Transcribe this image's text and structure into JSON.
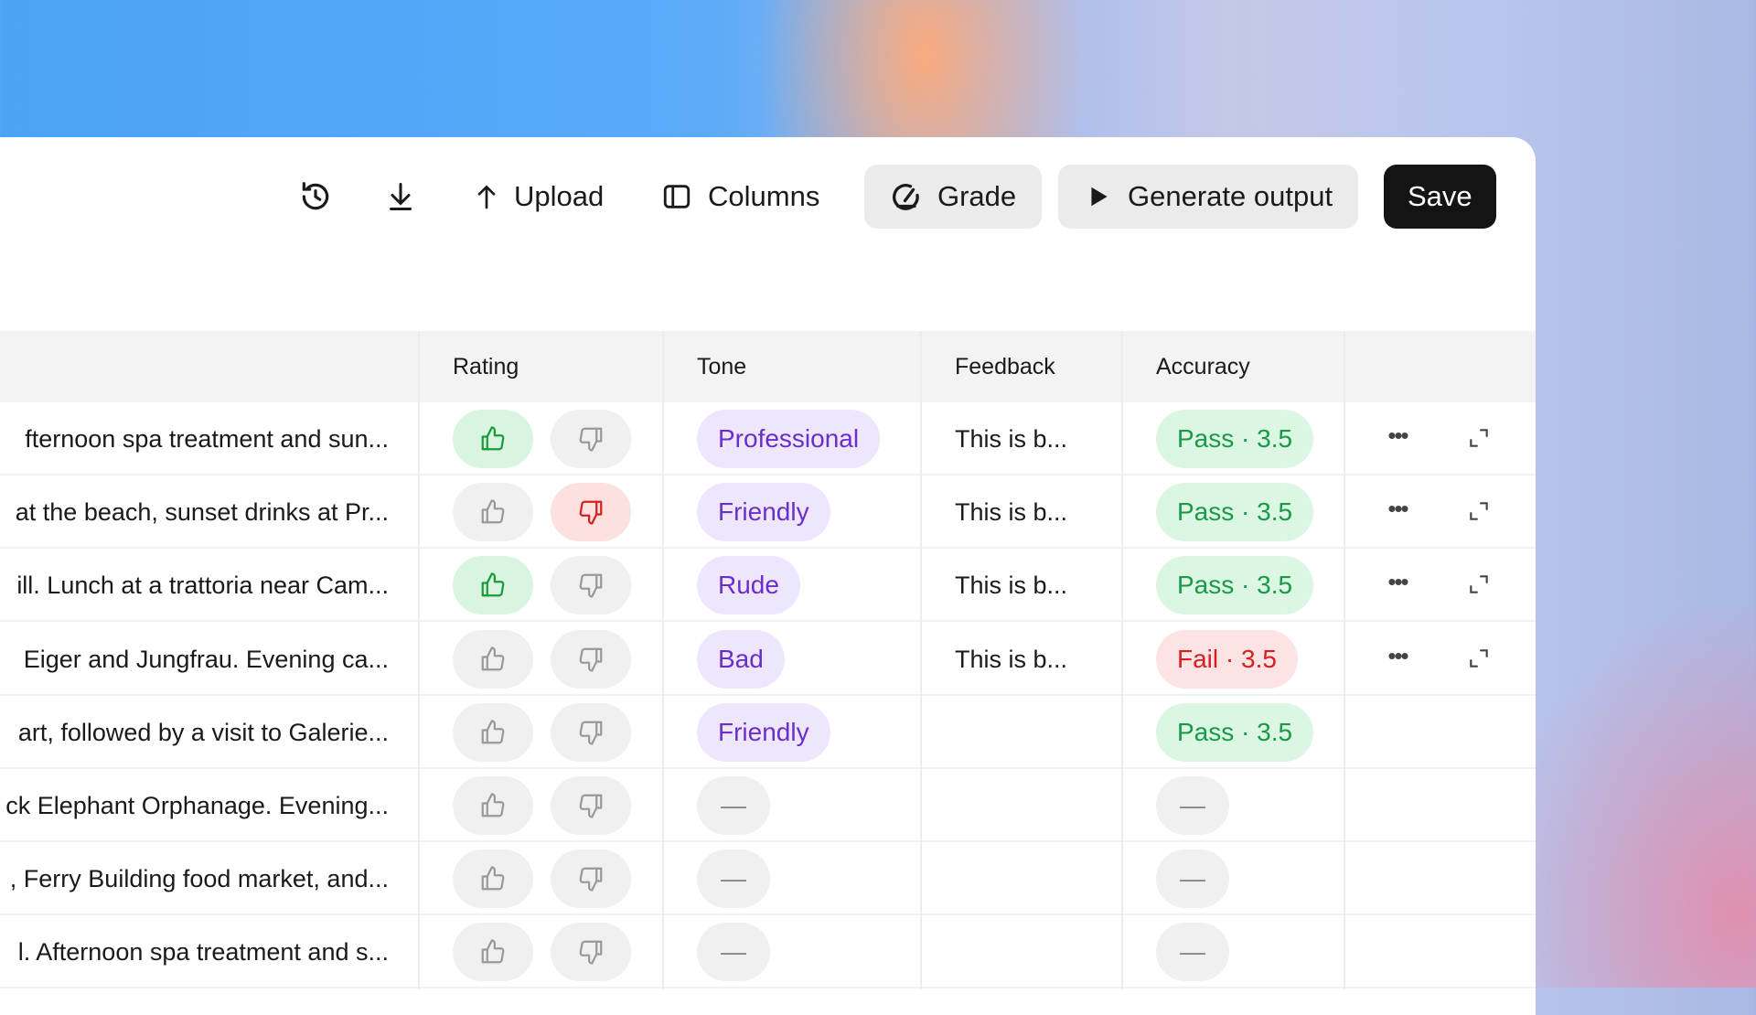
{
  "toolbar": {
    "history_icon": "history-icon",
    "download_icon": "download-icon",
    "upload": "Upload",
    "columns": "Columns",
    "grade": "Grade",
    "generate": "Generate output",
    "save": "Save"
  },
  "columns": {
    "rating": "Rating",
    "tone": "Tone",
    "feedback": "Feedback",
    "accuracy": "Accuracy"
  },
  "colors": {
    "pass_bg": "#dcf6e4",
    "pass_fg": "#1a9a48",
    "fail_bg": "#fde3e3",
    "fail_fg": "#d42020",
    "tone_bg": "#ede6fd",
    "tone_fg": "#6b2fc9",
    "save_bg": "#141414"
  },
  "rows": [
    {
      "text": "fternoon spa treatment and sun...",
      "rating": "up",
      "tone": "Professional",
      "feedback": "This is b...",
      "accuracy": "Pass · 3.5",
      "status": "pass",
      "actions": true
    },
    {
      "text": "at the beach, sunset drinks at Pr...",
      "rating": "down",
      "tone": "Friendly",
      "feedback": "This is b...",
      "accuracy": "Pass · 3.5",
      "status": "pass",
      "actions": true
    },
    {
      "text": "ill. Lunch at a trattoria near Cam...",
      "rating": "up",
      "tone": "Rude",
      "feedback": "This is b...",
      "accuracy": "Pass · 3.5",
      "status": "pass",
      "actions": true
    },
    {
      "text": " Eiger and Jungfrau. Evening ca...",
      "rating": "none",
      "tone": "Bad",
      "feedback": "This is b...",
      "accuracy": "Fail · 3.5",
      "status": "fail",
      "actions": true
    },
    {
      "text": "art, followed by a visit to Galerie...",
      "rating": "none",
      "tone": "Friendly",
      "feedback": "",
      "accuracy": "Pass · 3.5",
      "status": "pass",
      "actions": false
    },
    {
      "text": "ck Elephant Orphanage. Evening...",
      "rating": "none",
      "tone": "—",
      "feedback": "",
      "accuracy": "—",
      "status": "empty",
      "actions": false
    },
    {
      "text": ", Ferry Building food market, and...",
      "rating": "none",
      "tone": "—",
      "feedback": "",
      "accuracy": "—",
      "status": "empty",
      "actions": false
    },
    {
      "text": "l. Afternoon spa treatment and s...",
      "rating": "none",
      "tone": "—",
      "feedback": "",
      "accuracy": "—",
      "status": "empty",
      "actions": false
    }
  ]
}
